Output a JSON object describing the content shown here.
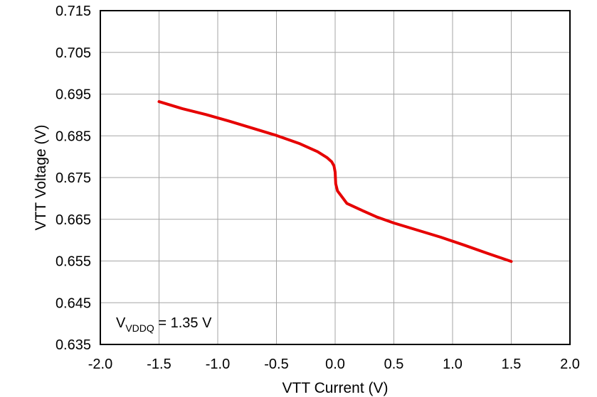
{
  "chart_data": {
    "type": "line",
    "xlabel": "VTT Current (V)",
    "ylabel": "VTT Voltage (V)",
    "xlim": [
      -2.0,
      2.0
    ],
    "ylim": [
      0.635,
      0.715
    ],
    "x_ticks": [
      "-2.0",
      "-1.5",
      "-1.0",
      "-0.5",
      "0.0",
      "0.5",
      "1.0",
      "1.5",
      "2.0"
    ],
    "y_ticks": [
      "0.715",
      "0.705",
      "0.695",
      "0.685",
      "0.675",
      "0.665",
      "0.655",
      "0.645",
      "0.635"
    ],
    "x_tick_values": [
      -2.0,
      -1.5,
      -1.0,
      -0.5,
      0.0,
      0.5,
      1.0,
      1.5,
      2.0
    ],
    "y_tick_values": [
      0.715,
      0.705,
      0.695,
      0.685,
      0.675,
      0.665,
      0.655,
      0.645,
      0.635
    ],
    "grid": true,
    "series": [
      {
        "color": "#e60000",
        "x": [
          -1.5,
          -1.3,
          -1.1,
          -0.9,
          -0.7,
          -0.5,
          -0.3,
          -0.15,
          -0.07,
          -0.03,
          -0.01,
          0.0,
          0.005,
          0.02,
          0.06,
          0.1,
          0.2,
          0.35,
          0.5,
          0.7,
          0.9,
          1.1,
          1.3,
          1.5
        ],
        "y": [
          0.6932,
          0.6915,
          0.6901,
          0.6885,
          0.6868,
          0.6851,
          0.6831,
          0.6812,
          0.6798,
          0.6788,
          0.6778,
          0.6763,
          0.6735,
          0.6718,
          0.6703,
          0.6688,
          0.6675,
          0.6656,
          0.6641,
          0.6624,
          0.6607,
          0.6588,
          0.6568,
          0.6549
        ]
      }
    ],
    "annotation": {
      "main": "V",
      "sub": "VDDQ",
      "rest": " = 1.35 V"
    }
  }
}
